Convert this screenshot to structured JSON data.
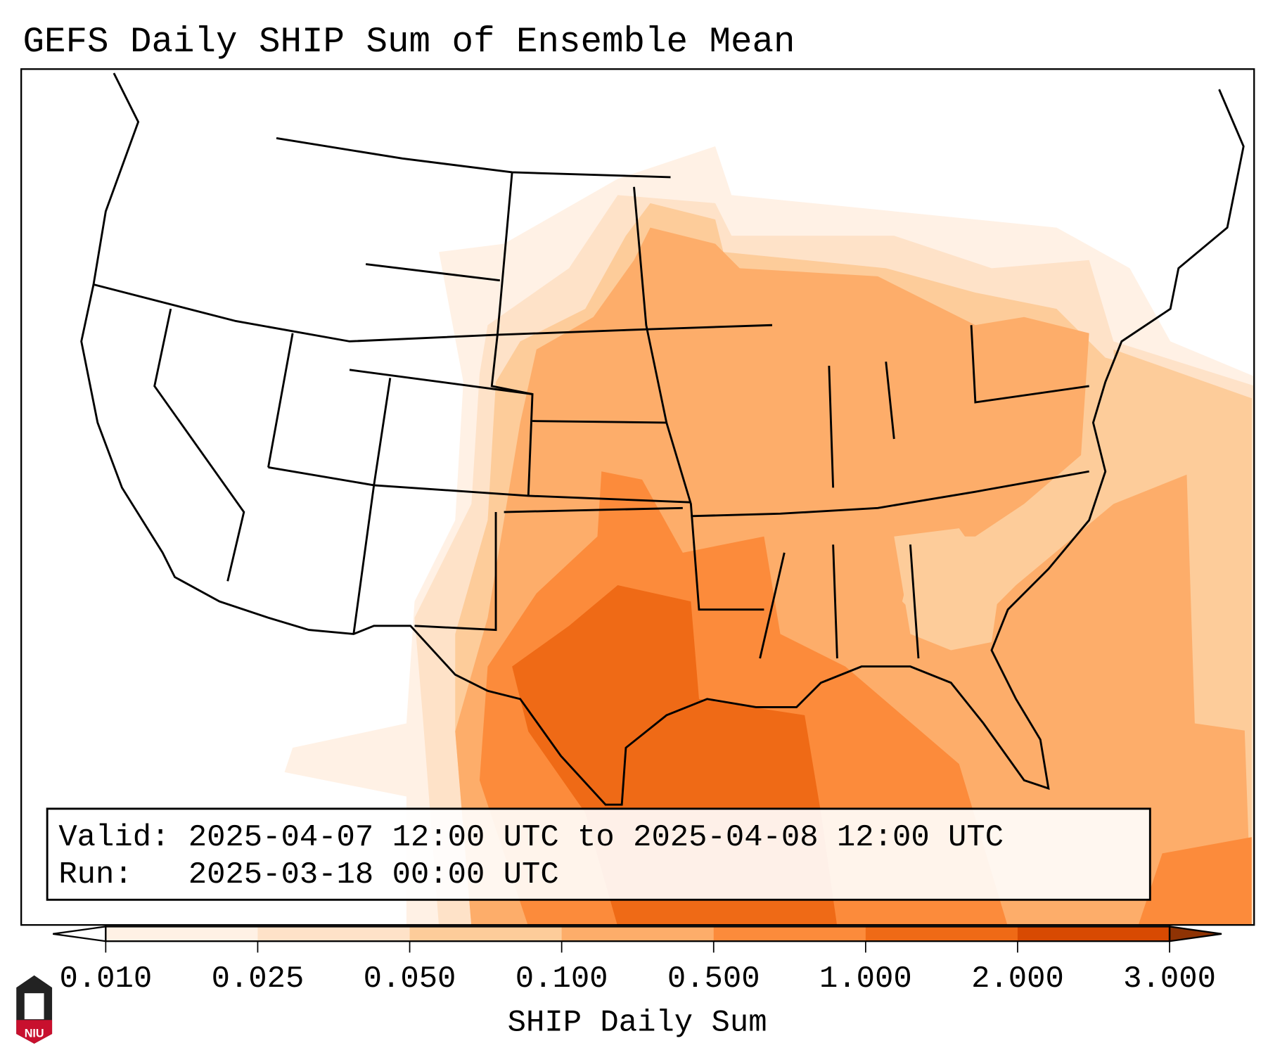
{
  "title": "GEFS Daily SHIP Sum of Ensemble Mean",
  "info_box": {
    "valid_line": "Valid: 2025-04-07 12:00 UTC to 2025-04-08 12:00 UTC",
    "run_line": "Run:   2025-03-18 00:00 UTC"
  },
  "colorbar": {
    "label": "SHIP Daily Sum",
    "ticks": [
      "0.010",
      "0.025",
      "0.050",
      "0.100",
      "0.500",
      "1.000",
      "2.000",
      "3.000"
    ],
    "colors": [
      "#fff1e5",
      "#fee2c8",
      "#fdcc9a",
      "#fdad6a",
      "#fc8b3b",
      "#ef6a16",
      "#d84a02",
      "#8f3304"
    ],
    "under_color": "#ffffff"
  },
  "logo": {
    "text": "NIU"
  }
}
